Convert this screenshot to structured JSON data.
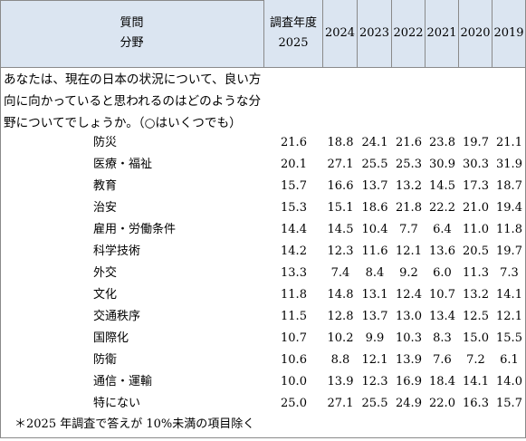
{
  "header": {
    "question_label": "質問",
    "field_label": "分野",
    "survey_year_label": "調査年度",
    "years": [
      "2025",
      "2024",
      "2023",
      "2022",
      "2021",
      "2020",
      "2019"
    ]
  },
  "question": "あなたは、現在の日本の状況について、良い方向に向かっていると思われるのはどのような分野についてでしょうか。（○はいくつでも）",
  "table": {
    "rows": [
      {
        "label": "防災",
        "values": [
          "21.6",
          "18.8",
          "24.1",
          "21.6",
          "23.8",
          "19.7",
          "21.1"
        ]
      },
      {
        "label": "医療・福祉",
        "values": [
          "20.1",
          "27.1",
          "25.5",
          "25.3",
          "30.9",
          "30.3",
          "31.9"
        ]
      },
      {
        "label": "教育",
        "values": [
          "15.7",
          "16.6",
          "13.7",
          "13.2",
          "14.5",
          "17.3",
          "18.7"
        ]
      },
      {
        "label": "治安",
        "values": [
          "15.3",
          "15.1",
          "18.6",
          "21.8",
          "22.2",
          "21.0",
          "19.4"
        ]
      },
      {
        "label": "雇用・労働条件",
        "values": [
          "14.4",
          "14.5",
          "10.4",
          "7.7",
          "6.4",
          "11.0",
          "11.8"
        ]
      },
      {
        "label": "科学技術",
        "values": [
          "14.2",
          "12.3",
          "11.6",
          "12.1",
          "13.6",
          "20.5",
          "19.7"
        ]
      },
      {
        "label": "外交",
        "values": [
          "13.3",
          "7.4",
          "8.4",
          "9.2",
          "6.0",
          "11.3",
          "7.3"
        ]
      },
      {
        "label": "文化",
        "values": [
          "11.8",
          "14.8",
          "13.1",
          "12.4",
          "10.7",
          "13.2",
          "14.1"
        ]
      },
      {
        "label": "交通秩序",
        "values": [
          "11.5",
          "12.8",
          "13.7",
          "13.0",
          "13.4",
          "12.5",
          "12.1"
        ]
      },
      {
        "label": "国際化",
        "values": [
          "10.7",
          "10.2",
          "9.9",
          "10.3",
          "8.3",
          "15.0",
          "15.5"
        ]
      },
      {
        "label": "防衛",
        "values": [
          "10.6",
          "8.8",
          "12.1",
          "13.9",
          "7.6",
          "7.2",
          "6.1"
        ]
      },
      {
        "label": "通信・運輸",
        "values": [
          "10.0",
          "13.9",
          "12.3",
          "16.9",
          "18.4",
          "14.1",
          "14.0"
        ]
      },
      {
        "label": "特にない",
        "values": [
          "25.0",
          "27.1",
          "25.5",
          "24.9",
          "22.0",
          "16.3",
          "15.7"
        ]
      }
    ]
  },
  "footnote": "＊2025 年調査で答えが 10%未満の項目除く"
}
